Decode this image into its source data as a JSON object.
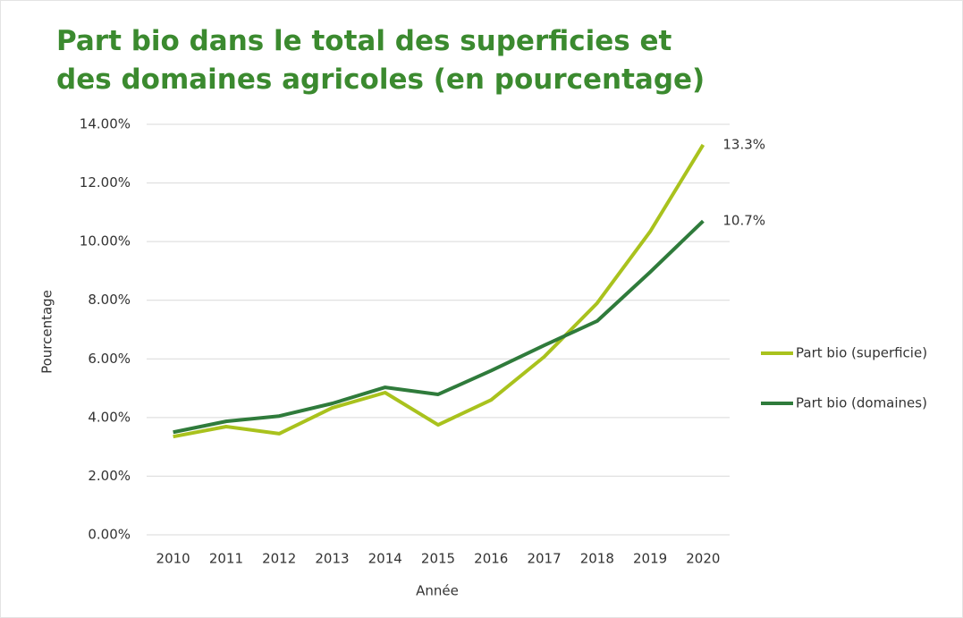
{
  "chart_data": {
    "type": "line",
    "title": "Part bio dans le total des superficies et des domaines agricoles (en pourcentage)",
    "x_label": "Année",
    "y_label": "Pourcentage",
    "categories": [
      "2010",
      "2011",
      "2012",
      "2013",
      "2014",
      "2015",
      "2016",
      "2017",
      "2018",
      "2019",
      "2020"
    ],
    "series": [
      {
        "name": "Part bio (superficie)",
        "color": "#a9c21d",
        "values": [
          3.35,
          3.69,
          3.45,
          4.33,
          4.85,
          3.75,
          4.6,
          6.07,
          7.9,
          10.34,
          13.3
        ],
        "value_labels": [
          null,
          null,
          null,
          null,
          null,
          null,
          null,
          null,
          null,
          null,
          "13.3%"
        ]
      },
      {
        "name": "Part bio (domaines)",
        "color": "#2f7b3b",
        "values": [
          3.5,
          3.87,
          4.05,
          4.48,
          5.03,
          4.79,
          5.6,
          6.46,
          7.29,
          8.96,
          10.7
        ],
        "value_labels": [
          null,
          null,
          null,
          null,
          null,
          null,
          null,
          null,
          null,
          null,
          "10.7%"
        ]
      }
    ],
    "ylim": [
      0,
      14
    ],
    "yticks": [
      {
        "value": 0,
        "label": "0.00%"
      },
      {
        "value": 2,
        "label": "2.00%"
      },
      {
        "value": 4,
        "label": "4.00%"
      },
      {
        "value": 6,
        "label": "6.00%"
      },
      {
        "value": 8,
        "label": "8.00%"
      },
      {
        "value": 10,
        "label": "10.00%"
      },
      {
        "value": 12,
        "label": "12.00%"
      },
      {
        "value": 14,
        "label": "14.00%"
      }
    ],
    "grid": true,
    "legend": "right"
  }
}
